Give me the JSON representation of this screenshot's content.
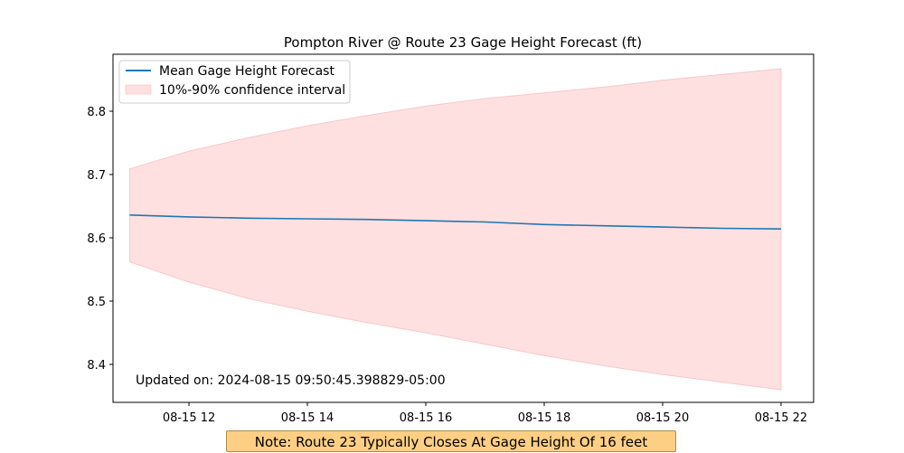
{
  "chart_data": {
    "type": "line",
    "title": "Pompton River @ Route 23 Gage Height Forecast (ft)",
    "xlabel": "",
    "ylabel": "",
    "x": [
      "2024-08-15 11:00",
      "2024-08-15 12:00",
      "2024-08-15 13:00",
      "2024-08-15 14:00",
      "2024-08-15 15:00",
      "2024-08-15 16:00",
      "2024-08-15 17:00",
      "2024-08-15 18:00",
      "2024-08-15 19:00",
      "2024-08-15 20:00",
      "2024-08-15 21:00",
      "2024-08-15 22:00"
    ],
    "x_tick_labels": [
      "08-15 12",
      "08-15 14",
      "08-15 16",
      "08-15 18",
      "08-15 20",
      "08-15 22"
    ],
    "x_ticks": [
      "2024-08-15 12:00",
      "2024-08-15 14:00",
      "2024-08-15 16:00",
      "2024-08-15 18:00",
      "2024-08-15 20:00",
      "2024-08-15 22:00"
    ],
    "y_ticks": [
      8.4,
      8.5,
      8.6,
      8.7,
      8.8
    ],
    "y_tick_labels": [
      "8.4",
      "8.5",
      "8.6",
      "8.7",
      "8.8"
    ],
    "ylim": [
      8.34,
      8.89
    ],
    "xlim": [
      "2024-08-15 10:43",
      "2024-08-15 22:33"
    ],
    "grid": false,
    "legend_position": "top-left",
    "series": [
      {
        "name": "Mean Gage Height Forecast",
        "kind": "line",
        "color": "#1f77b4",
        "values": [
          8.636,
          8.633,
          8.631,
          8.63,
          8.629,
          8.627,
          8.625,
          8.621,
          8.619,
          8.617,
          8.615,
          8.614
        ]
      },
      {
        "name": "10%-90% confidence interval",
        "kind": "band",
        "color": "#ffe0e0",
        "lower": [
          8.562,
          8.53,
          8.504,
          8.484,
          8.466,
          8.45,
          8.432,
          8.414,
          8.398,
          8.384,
          8.372,
          8.36
        ],
        "upper": [
          8.709,
          8.737,
          8.758,
          8.777,
          8.793,
          8.808,
          8.82,
          8.829,
          8.838,
          8.849,
          8.858,
          8.867
        ]
      }
    ],
    "annotations": {
      "updated": "Updated on: 2024-08-15 09:50:45.398829-05:00",
      "note": "Note: Route 23 Typically Closes At Gage Height Of 16 feet"
    }
  }
}
